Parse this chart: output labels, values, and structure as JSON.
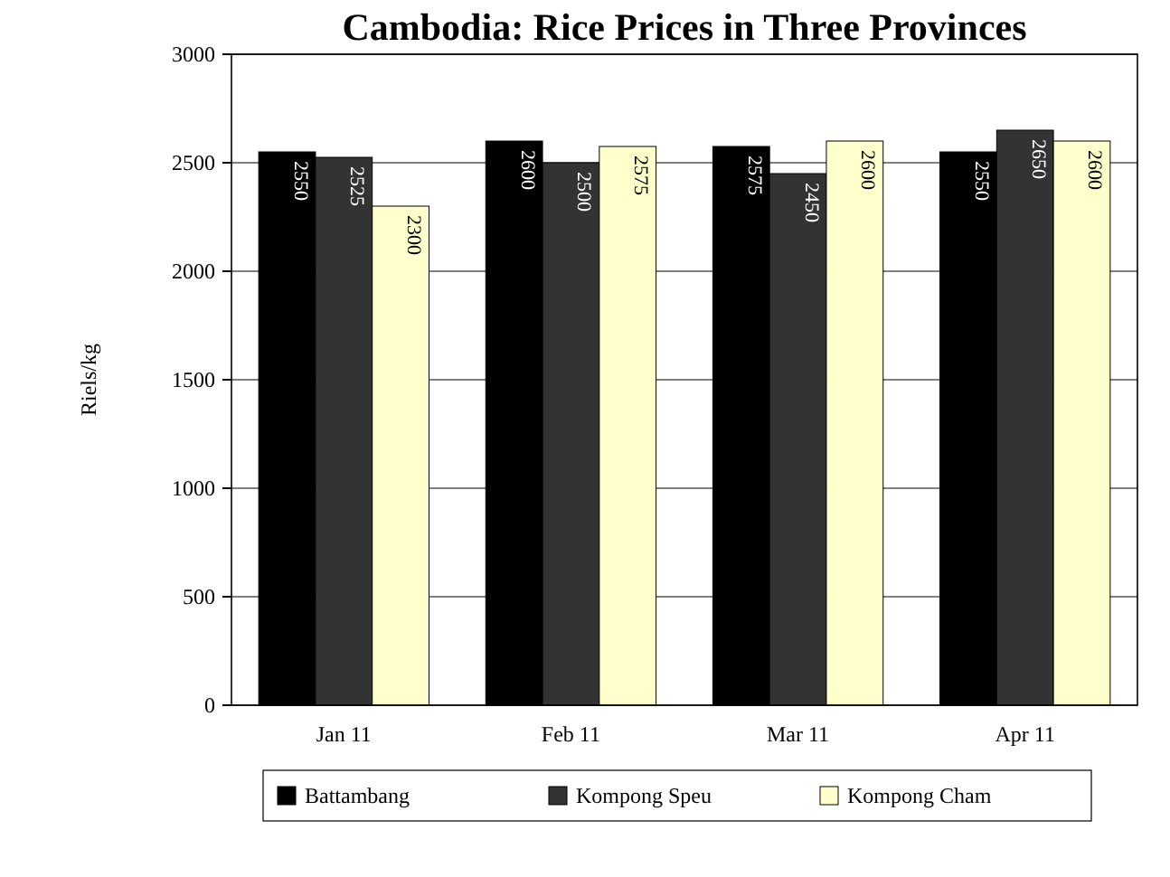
{
  "chart_data": {
    "type": "bar",
    "title": "Cambodia: Rice Prices in Three Provinces",
    "ylabel": "Riels/kg",
    "categories": [
      "Jan 11",
      "Feb 11",
      "Mar 11",
      "Apr 11"
    ],
    "series": [
      {
        "name": "Battambang",
        "color": "#000000",
        "values": [
          2550,
          2600,
          2575,
          2550
        ]
      },
      {
        "name": "Kompong Speu",
        "color": "#333333",
        "values": [
          2525,
          2500,
          2450,
          2650
        ]
      },
      {
        "name": "Kompong Cham",
        "color": "#ffffcc",
        "values": [
          2300,
          2575,
          2600,
          2600
        ]
      }
    ],
    "ylim": [
      0,
      3000
    ],
    "yticks": [
      0,
      500,
      1000,
      1500,
      2000,
      2500,
      3000
    ],
    "grid": "y",
    "data_labels": true,
    "legend": "bottom"
  }
}
